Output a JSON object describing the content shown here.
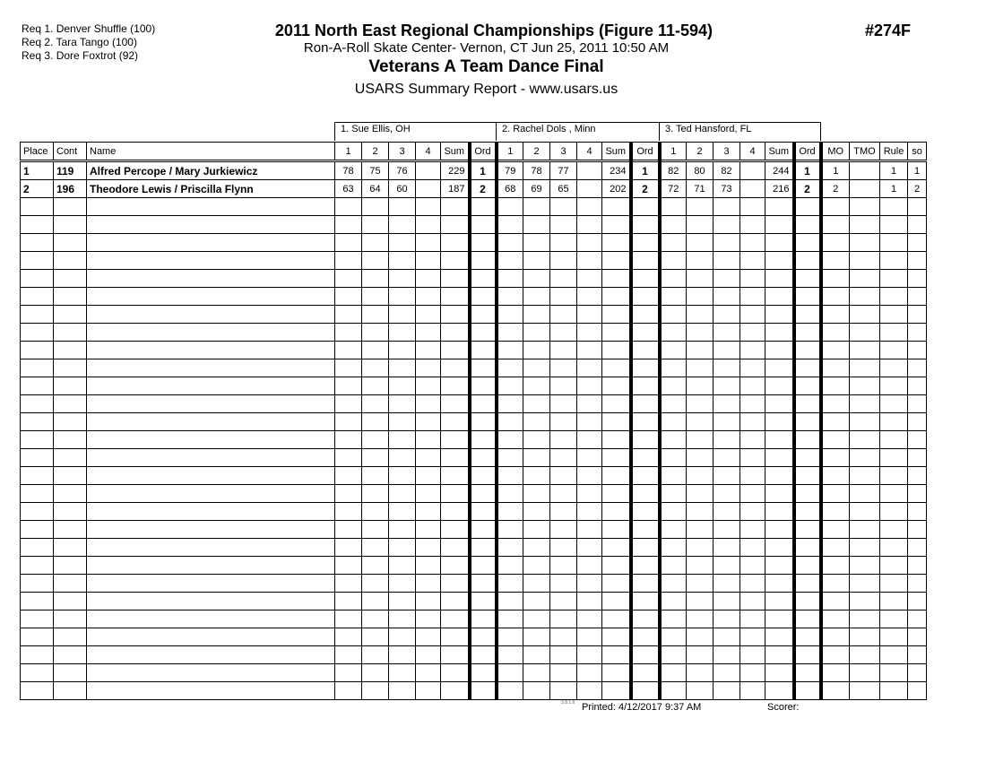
{
  "requirements": [
    "Req  1.  Denver Shuffle (100)",
    "Req  2.  Tara Tango (100)",
    "Req  3.  Dore Foxtrot (92)"
  ],
  "title": "2011 North East Regional Championships (Figure  11-594)",
  "event_code": "#274F",
  "venue": "Ron-A-Roll Skate Center- Vernon, CT  Jun 25, 2011  10:50 AM",
  "event": "Veterans A Team Dance Final",
  "report": "USARS Summary Report - www.usars.us",
  "judges": [
    "1.  Sue Ellis,   OH",
    "2.  Rachel Dols ,  Minn",
    "3.  Ted Hansford, FL"
  ],
  "headers": [
    "Place",
    "Cont",
    "Name",
    "1",
    "2",
    "3",
    "4",
    "Sum",
    "Ord",
    "1",
    "2",
    "3",
    "4",
    "Sum",
    "Ord",
    "1",
    "2",
    "3",
    "4",
    "Sum",
    "Ord",
    "MO",
    "TMO",
    "Rule",
    "so"
  ],
  "rows": [
    [
      "1",
      "119",
      "Alfred Percope / Mary Jurkiewicz",
      "78",
      "75",
      "76",
      "",
      "229",
      "1",
      "79",
      "78",
      "77",
      "",
      "234",
      "1",
      "82",
      "80",
      "82",
      "",
      "244",
      "1",
      "1",
      "",
      "1",
      "1"
    ],
    [
      "2",
      "196",
      "Theodore Lewis / Priscilla Flynn",
      "63",
      "64",
      "60",
      "",
      "187",
      "2",
      "68",
      "69",
      "65",
      "",
      "202",
      "2",
      "72",
      "71",
      "73",
      "",
      "216",
      "2",
      "2",
      "",
      "1",
      "2"
    ]
  ],
  "empty_rows": 28,
  "footer": {
    "version": "3.8.1.8",
    "printed": "Printed:  4/12/2017  9:37 AM",
    "scorer": "Scorer:"
  }
}
